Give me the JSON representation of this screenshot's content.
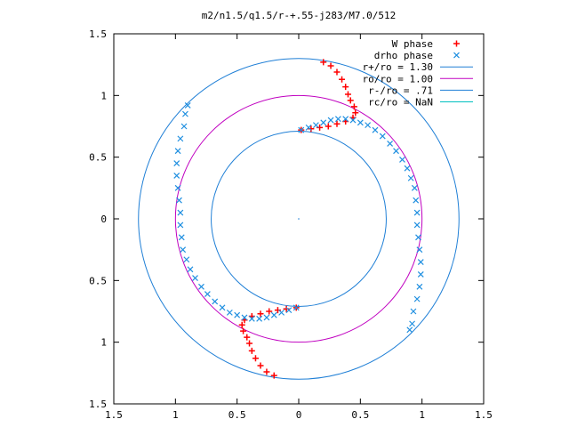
{
  "chart_data": {
    "type": "scatter",
    "title": "m2/n1.5/q1.5/r-+.55-j283/M7.0/512",
    "xlim": [
      -1.5,
      1.5
    ],
    "ylim": [
      -1.5,
      1.5
    ],
    "x_ticks": [
      {
        "v": -1.5,
        "label": "1.5"
      },
      {
        "v": -1,
        "label": "1"
      },
      {
        "v": -0.5,
        "label": "0.5"
      },
      {
        "v": 0,
        "label": "0"
      },
      {
        "v": 0.5,
        "label": "0.5"
      },
      {
        "v": 1,
        "label": "1"
      },
      {
        "v": 1.5,
        "label": "1.5"
      }
    ],
    "y_ticks": [
      {
        "v": 1.5,
        "label": "1.5"
      },
      {
        "v": 1,
        "label": "1"
      },
      {
        "v": 0.5,
        "label": "0.5"
      },
      {
        "v": 0,
        "label": "0"
      },
      {
        "v": -0.5,
        "label": "0.5"
      },
      {
        "v": -1,
        "label": "1"
      },
      {
        "v": -1.5,
        "label": "1.5"
      }
    ],
    "grid": false,
    "legend_position": "top-right",
    "circles": [
      {
        "name": "r+/ro = 1.30",
        "r": 1.3,
        "color": "#1f7fd6"
      },
      {
        "name": "ro/ro = 1.00",
        "r": 1.0,
        "color": "#c000c0"
      },
      {
        "name": "r-/ro = .71",
        "r": 0.71,
        "color": "#1f7fd6"
      },
      {
        "name": "rc/ro = NaN",
        "r": null,
        "color": "#00c0c0"
      }
    ],
    "series": [
      {
        "name": "W phase",
        "marker": "+",
        "color": "#ff0000",
        "points": [
          [
            0.2,
            1.27
          ],
          [
            0.26,
            1.24
          ],
          [
            0.31,
            1.19
          ],
          [
            0.35,
            1.13
          ],
          [
            0.38,
            1.07
          ],
          [
            0.4,
            1.01
          ],
          [
            0.42,
            0.96
          ],
          [
            0.45,
            0.91
          ],
          [
            0.46,
            0.86
          ],
          [
            0.44,
            0.82
          ],
          [
            0.38,
            0.79
          ],
          [
            0.31,
            0.77
          ],
          [
            0.24,
            0.75
          ],
          [
            0.17,
            0.74
          ],
          [
            0.1,
            0.73
          ],
          [
            0.02,
            0.72
          ],
          [
            -0.2,
            -1.27
          ],
          [
            -0.26,
            -1.24
          ],
          [
            -0.31,
            -1.19
          ],
          [
            -0.35,
            -1.13
          ],
          [
            -0.38,
            -1.07
          ],
          [
            -0.4,
            -1.01
          ],
          [
            -0.42,
            -0.96
          ],
          [
            -0.45,
            -0.91
          ],
          [
            -0.46,
            -0.86
          ],
          [
            -0.44,
            -0.82
          ],
          [
            -0.38,
            -0.79
          ],
          [
            -0.31,
            -0.77
          ],
          [
            -0.24,
            -0.75
          ],
          [
            -0.17,
            -0.74
          ],
          [
            -0.1,
            -0.73
          ],
          [
            -0.02,
            -0.72
          ]
        ]
      },
      {
        "name": "drho phase",
        "marker": "x",
        "color": "#1f8fe0",
        "points": [
          [
            0.02,
            0.72
          ],
          [
            0.08,
            0.74
          ],
          [
            0.14,
            0.76
          ],
          [
            0.2,
            0.78
          ],
          [
            0.26,
            0.8
          ],
          [
            0.32,
            0.81
          ],
          [
            0.38,
            0.81
          ],
          [
            0.44,
            0.8
          ],
          [
            0.5,
            0.78
          ],
          [
            0.56,
            0.76
          ],
          [
            0.62,
            0.72
          ],
          [
            0.68,
            0.67
          ],
          [
            0.74,
            0.61
          ],
          [
            0.79,
            0.55
          ],
          [
            0.84,
            0.48
          ],
          [
            0.88,
            0.41
          ],
          [
            0.91,
            0.33
          ],
          [
            0.94,
            0.25
          ],
          [
            0.95,
            0.15
          ],
          [
            0.96,
            0.05
          ],
          [
            0.96,
            -0.05
          ],
          [
            0.97,
            -0.15
          ],
          [
            0.98,
            -0.25
          ],
          [
            0.99,
            -0.35
          ],
          [
            0.99,
            -0.45
          ],
          [
            0.98,
            -0.55
          ],
          [
            0.96,
            -0.65
          ],
          [
            0.93,
            -0.75
          ],
          [
            0.92,
            -0.85
          ],
          [
            0.9,
            -0.9
          ],
          [
            -0.02,
            -0.72
          ],
          [
            -0.08,
            -0.74
          ],
          [
            -0.14,
            -0.76
          ],
          [
            -0.2,
            -0.78
          ],
          [
            -0.26,
            -0.8
          ],
          [
            -0.32,
            -0.81
          ],
          [
            -0.38,
            -0.81
          ],
          [
            -0.44,
            -0.8
          ],
          [
            -0.5,
            -0.78
          ],
          [
            -0.56,
            -0.76
          ],
          [
            -0.62,
            -0.72
          ],
          [
            -0.68,
            -0.67
          ],
          [
            -0.74,
            -0.61
          ],
          [
            -0.79,
            -0.55
          ],
          [
            -0.84,
            -0.48
          ],
          [
            -0.88,
            -0.41
          ],
          [
            -0.91,
            -0.33
          ],
          [
            -0.94,
            -0.25
          ],
          [
            -0.95,
            -0.15
          ],
          [
            -0.96,
            -0.05
          ],
          [
            -0.96,
            0.05
          ],
          [
            -0.97,
            0.15
          ],
          [
            -0.98,
            0.25
          ],
          [
            -0.99,
            0.35
          ],
          [
            -0.99,
            0.45
          ],
          [
            -0.98,
            0.55
          ],
          [
            -0.96,
            0.65
          ],
          [
            -0.93,
            0.75
          ],
          [
            -0.92,
            0.85
          ],
          [
            -0.9,
            0.92
          ]
        ]
      }
    ]
  }
}
